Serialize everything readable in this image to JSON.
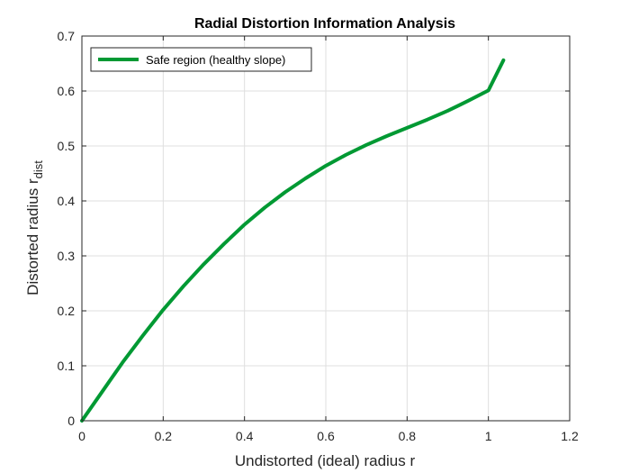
{
  "chart_data": {
    "type": "line",
    "title": "Radial Distortion Information Analysis",
    "xlabel": "Undistorted (ideal) radius r",
    "ylabel_main": "Distorted radius r",
    "ylabel_sub": "dist",
    "xlim": [
      0,
      1.2
    ],
    "ylim": [
      0,
      0.7
    ],
    "xticks": [
      "0",
      "0.2",
      "0.4",
      "0.6",
      "0.8",
      "1",
      "1.2"
    ],
    "yticks": [
      "0",
      "0.1",
      "0.2",
      "0.3",
      "0.4",
      "0.5",
      "0.6",
      "0.7"
    ],
    "grid": true,
    "legend_position": "top-left",
    "series": [
      {
        "name": "Safe region (healthy slope)",
        "color": "#009933",
        "x": [
          0,
          0.05,
          0.1,
          0.15,
          0.2,
          0.25,
          0.3,
          0.35,
          0.4,
          0.45,
          0.5,
          0.55,
          0.6,
          0.65,
          0.7,
          0.75,
          0.8,
          0.85,
          0.9,
          0.95,
          1.0,
          1.037
        ],
        "y": [
          0,
          0.053,
          0.106,
          0.155,
          0.202,
          0.245,
          0.285,
          0.322,
          0.357,
          0.388,
          0.416,
          0.441,
          0.464,
          0.484,
          0.502,
          0.518,
          0.533,
          0.548,
          0.564,
          0.582,
          0.601,
          0.656
        ]
      }
    ]
  }
}
